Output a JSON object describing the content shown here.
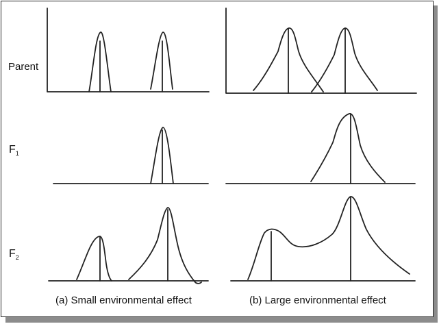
{
  "figure": {
    "row_labels": {
      "parent": "Parent",
      "f1_base": "F",
      "f1_sub": "1",
      "f2_base": "F",
      "f2_sub": "2"
    },
    "captions": {
      "left": "(a) Small environmental effect",
      "right": "(b) Large environmental effect"
    },
    "colors": {
      "stroke": "#222222",
      "shadow": "#8c8c8c",
      "background": "#ffffff"
    }
  }
}
